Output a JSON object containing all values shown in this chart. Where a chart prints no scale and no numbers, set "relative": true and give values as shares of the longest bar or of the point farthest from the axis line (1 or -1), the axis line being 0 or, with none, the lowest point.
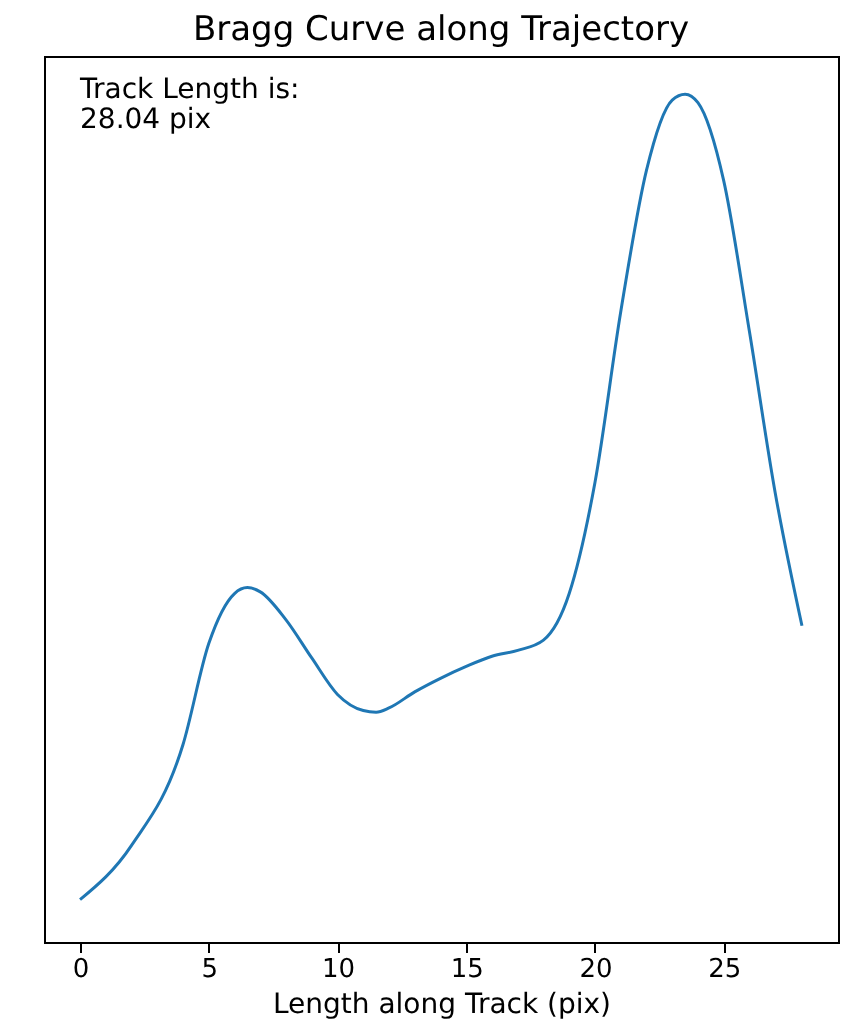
{
  "chart_data": {
    "type": "line",
    "title": "Bragg Curve along Trajectory",
    "xlabel": "Length along Track (pix)",
    "annotations": [
      "Track Length is:\n28.04 pix"
    ],
    "relative": true,
    "tick_labels": "x",
    "grid": false,
    "xlim": [
      -1.4,
      29.44
    ],
    "xticks": [
      0,
      5,
      10,
      15,
      20,
      25
    ],
    "series": [
      {
        "color": "#1f77b4",
        "x": [
          0,
          2,
          4,
          5,
          6,
          6.5,
          7,
          8,
          9,
          10,
          11,
          11.5,
          12,
          13,
          14,
          15,
          16,
          17,
          18,
          19,
          20,
          21,
          22,
          23,
          23.5,
          24,
          25,
          26,
          27,
          28.04
        ],
        "values": [
          0.05,
          0.114,
          0.233,
          0.352,
          0.411,
          0.418,
          0.413,
          0.38,
          0.335,
          0.292,
          0.273,
          0.271,
          0.276,
          0.295,
          0.311,
          0.325,
          0.337,
          0.344,
          0.356,
          0.411,
          0.542,
          0.743,
          0.91,
          0.993,
          1,
          0.99,
          0.898,
          0.72,
          0.53,
          0.373
        ]
      }
    ]
  }
}
